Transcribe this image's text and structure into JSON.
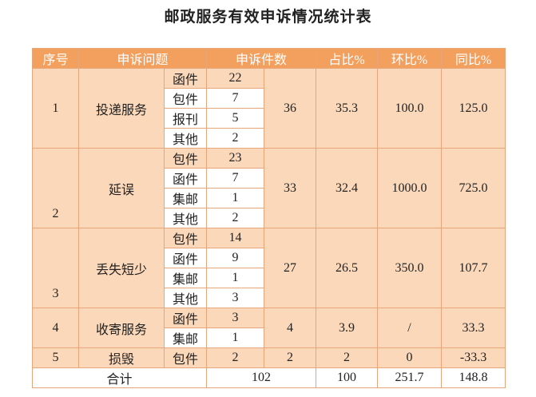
{
  "title": "邮政服务有效申诉情况统计表",
  "header": [
    "序号",
    "申诉问题",
    "申诉件数",
    "占比%",
    "环比%",
    "同比%"
  ],
  "groups": [
    {
      "no": "1",
      "name": "投递服务",
      "items": [
        {
          "name": "函件",
          "count": "22"
        },
        {
          "name": "包件",
          "count": "7"
        },
        {
          "name": "报刊",
          "count": "5"
        },
        {
          "name": "其他",
          "count": "2"
        }
      ],
      "total": "36",
      "share": "35.3",
      "mom": "100.0",
      "yoy": "125.0"
    },
    {
      "no": "2",
      "name": "延误",
      "items": [
        {
          "name": "包件",
          "count": "23"
        },
        {
          "name": "函件",
          "count": "7"
        },
        {
          "name": "集邮",
          "count": "1"
        },
        {
          "name": "其他",
          "count": "2"
        }
      ],
      "total": "33",
      "share": "32.4",
      "mom": "1000.0",
      "yoy": "725.0"
    },
    {
      "no": "3",
      "name": "丢失短少",
      "items": [
        {
          "name": "包件",
          "count": "14"
        },
        {
          "name": "函件",
          "count": "9"
        },
        {
          "name": "集邮",
          "count": "1"
        },
        {
          "name": "其他",
          "count": "3"
        }
      ],
      "total": "27",
      "share": "26.5",
      "mom": "350.0",
      "yoy": "107.7"
    },
    {
      "no": "4",
      "name": "收寄服务",
      "items": [
        {
          "name": "函件",
          "count": "3"
        },
        {
          "name": "集邮",
          "count": "1"
        }
      ],
      "total": "4",
      "share": "3.9",
      "mom": "/",
      "yoy": "33.3"
    },
    {
      "no": "5",
      "name": "损毁",
      "items": [
        {
          "name": "包件",
          "count": "2"
        }
      ],
      "total": "2",
      "share": "2",
      "mom": "0",
      "yoy": "-33.3"
    }
  ],
  "summary": {
    "label": "合计",
    "total": "102",
    "share": "100",
    "mom": "251.7",
    "yoy": "148.8"
  }
}
